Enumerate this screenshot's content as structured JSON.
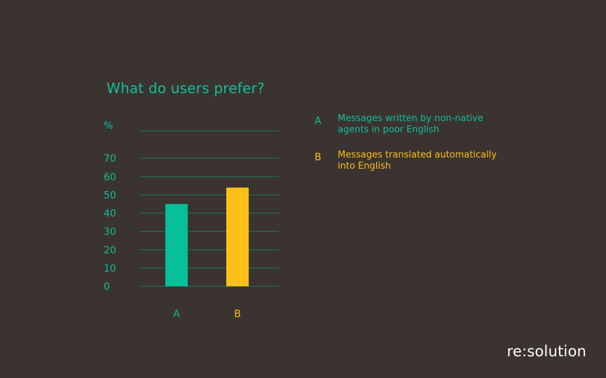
{
  "chart_data": {
    "type": "bar",
    "title": "What do users prefer?",
    "ylabel": "%",
    "categories": [
      "A",
      "B"
    ],
    "values": [
      45,
      54
    ],
    "colors": [
      "#07bf98",
      "#fdbf1a"
    ],
    "yticks": [
      0,
      10,
      20,
      30,
      40,
      50,
      60,
      70
    ],
    "ylim": [
      0,
      85
    ],
    "grid": true
  },
  "legend": [
    {
      "key": "A",
      "text": "Messages written by non-native agents in poor English",
      "color": "#13bf98"
    },
    {
      "key": "B",
      "text": "Messages translated automatically into English",
      "color": "#fdbf1a"
    }
  ],
  "brand": "re:solution",
  "colors": {
    "background": "#3a3330",
    "accent": "#13bf98",
    "grid": "#1f7a66"
  }
}
